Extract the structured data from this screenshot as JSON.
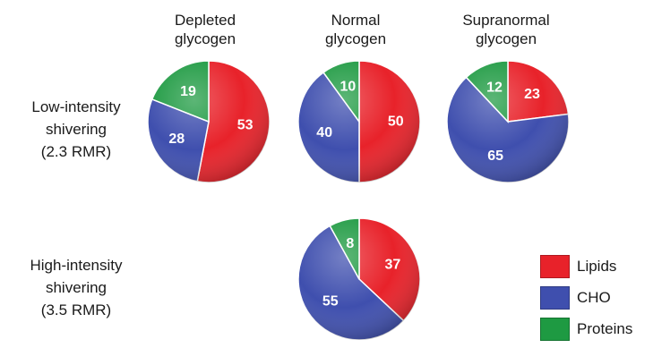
{
  "column_headers": [
    {
      "line1": "Depleted",
      "line2": "glycogen"
    },
    {
      "line1": "Normal",
      "line2": "glycogen"
    },
    {
      "line1": "Supranormal",
      "line2": "glycogen"
    }
  ],
  "row_headers": [
    {
      "line1": "Low-intensity",
      "line2": "shivering",
      "line3": "(2.3 RMR)"
    },
    {
      "line1": "High-intensity",
      "line2": "shivering",
      "line3": "(3.5 RMR)"
    }
  ],
  "legend": [
    {
      "label": "Lipids",
      "color": "#e8222a"
    },
    {
      "label": "CHO",
      "color": "#3f4fae"
    },
    {
      "label": "Proteins",
      "color": "#1e9a42"
    }
  ],
  "chart_data": [
    {
      "type": "pie",
      "row": "Low-intensity shivering (2.3 RMR)",
      "column": "Depleted glycogen",
      "categories": [
        "Lipids",
        "CHO",
        "Proteins"
      ],
      "values": [
        53,
        28,
        19
      ]
    },
    {
      "type": "pie",
      "row": "Low-intensity shivering (2.3 RMR)",
      "column": "Normal glycogen",
      "categories": [
        "Lipids",
        "CHO",
        "Proteins"
      ],
      "values": [
        50,
        40,
        10
      ]
    },
    {
      "type": "pie",
      "row": "Low-intensity shivering (2.3 RMR)",
      "column": "Supranormal glycogen",
      "categories": [
        "Lipids",
        "CHO",
        "Proteins"
      ],
      "values": [
        23,
        65,
        12
      ]
    },
    {
      "type": "pie",
      "row": "High-intensity shivering (3.5 RMR)",
      "column": "Normal glycogen",
      "categories": [
        "Lipids",
        "CHO",
        "Proteins"
      ],
      "values": [
        37,
        55,
        8
      ]
    }
  ]
}
